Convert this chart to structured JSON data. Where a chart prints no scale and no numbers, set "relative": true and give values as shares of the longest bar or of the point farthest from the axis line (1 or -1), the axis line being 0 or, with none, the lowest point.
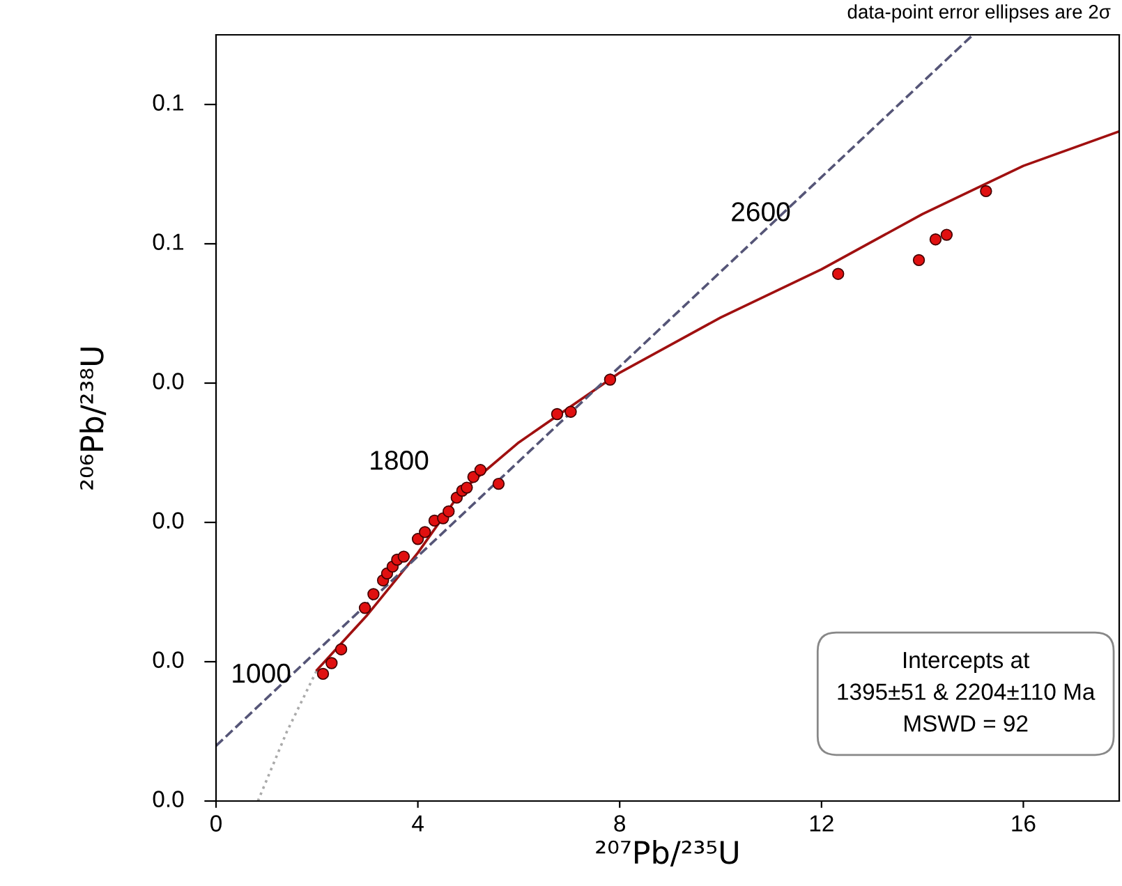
{
  "chart_data": {
    "type": "scatter",
    "xlabel": "²⁰⁷Pb/²³⁵U",
    "ylabel": "²⁰⁶Pb/²³⁸U",
    "relative": true,
    "xlim": [
      0,
      17.9
    ],
    "xticks": [
      0,
      4,
      8,
      12,
      16
    ],
    "grid": false,
    "legend": false,
    "marker": "circle",
    "series": [
      {
        "type": "line",
        "color": "#aaaaaa",
        "line_style": "dotted",
        "marker": "none",
        "x": [
          0.83,
          1.4,
          2.0
        ],
        "values": [
          0,
          0.09,
          0.171
        ]
      },
      {
        "type": "line",
        "color": "#a01010",
        "line_style": "solid",
        "marker": "none",
        "x": [
          2.0,
          3.0,
          4.0,
          4.87,
          6.0,
          8.0,
          10.0,
          12.0,
          14.0,
          16.0,
          17.9
        ],
        "values": [
          0.171,
          0.243,
          0.324,
          0.405,
          0.468,
          0.559,
          0.631,
          0.694,
          0.766,
          0.829,
          0.874
        ]
      },
      {
        "type": "line",
        "color": "#555577",
        "line_style": "dashed",
        "marker": "none",
        "x": [
          0,
          15.0
        ],
        "values": [
          0.072,
          1
        ]
      },
      {
        "color": "#e01010",
        "x": [
          2.12,
          2.29,
          2.48,
          2.95,
          3.12,
          3.31,
          3.39,
          3.5,
          3.59,
          3.72,
          4.0,
          4.14,
          4.33,
          4.5,
          4.61,
          4.77,
          4.88,
          4.97,
          5.1,
          5.24,
          5.6,
          6.76,
          7.03,
          7.81,
          12.33,
          13.93,
          14.26,
          14.48,
          15.26
        ],
        "values": [
          0.166,
          0.18,
          0.198,
          0.252,
          0.27,
          0.288,
          0.297,
          0.306,
          0.315,
          0.319,
          0.342,
          0.351,
          0.366,
          0.369,
          0.378,
          0.396,
          0.405,
          0.409,
          0.423,
          0.432,
          0.414,
          0.505,
          0.508,
          0.55,
          0.688,
          0.706,
          0.733,
          0.739,
          0.796
        ]
      }
    ],
    "annotations": [
      {
        "text": "1000",
        "x": 1.676,
        "y": 0.127
      },
      {
        "text": "1800",
        "x": 4.87,
        "y": 0.405
      },
      {
        "text": "2600",
        "x": 12.0,
        "y": 0.694
      },
      "Intercepts at\n1395±51 & 2204±110 Ma\nMSWD = 92",
      "data-point error ellipses are 2σ",
      "0.0",
      "0.0",
      "0.0",
      "0.0",
      "0.1",
      "0.1"
    ]
  }
}
